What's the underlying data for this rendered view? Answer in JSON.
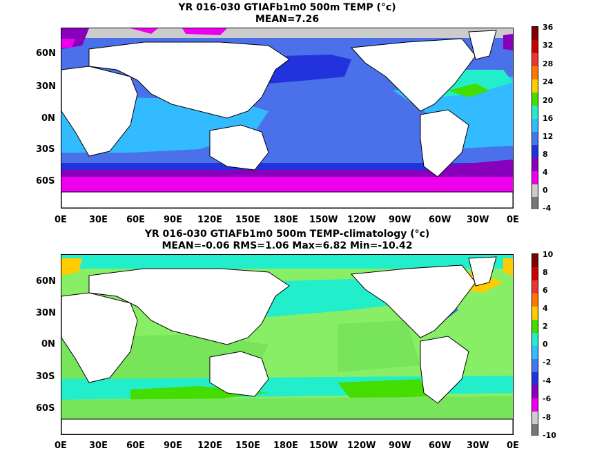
{
  "panels": [
    {
      "title_line1": "YR 016-030 GTIAFb1m0 500m TEMP (°c)",
      "title_line2": "MEAN=7.26",
      "lat_labels": [
        "60N",
        "30N",
        "0N",
        "30S",
        "60S"
      ],
      "lon_labels": [
        "0E",
        "30E",
        "60E",
        "90E",
        "120E",
        "150E",
        "180E",
        "150W",
        "120W",
        "90W",
        "60W",
        "30W",
        "0E"
      ],
      "colorbar_labels": [
        "36",
        "32",
        "28",
        "24",
        "20",
        "16",
        "12",
        "8",
        "4",
        "0",
        "-4"
      ],
      "colorbar_colors": [
        "#800000",
        "#cc0000",
        "#ee3333",
        "#ff7700",
        "#ffcc00",
        "#44dd00",
        "#22eecc",
        "#33bbff",
        "#4477ee",
        "#2233dd",
        "#8800bb",
        "#ee00ee",
        "#cccccc",
        "#777777"
      ]
    },
    {
      "title_line1": "YR 016-030 GTIAFb1m0 500m TEMP-climatology (°c)",
      "title_line2": "MEAN=-0.06   RMS=1.06   Max=6.82   Min=-10.42",
      "lat_labels": [
        "60N",
        "30N",
        "0N",
        "30S",
        "60S"
      ],
      "lon_labels": [
        "0E",
        "30E",
        "60E",
        "90E",
        "120E",
        "150E",
        "180E",
        "150W",
        "120W",
        "90W",
        "60W",
        "30W",
        "0E"
      ],
      "colorbar_labels": [
        "10",
        "8",
        "6",
        "4",
        "2",
        "0",
        "-2",
        "-4",
        "-6",
        "-8",
        "-10"
      ],
      "colorbar_colors": [
        "#800000",
        "#cc0000",
        "#ee3333",
        "#ff7700",
        "#ffcc00",
        "#44dd00",
        "#22eecc",
        "#33bbff",
        "#4477ee",
        "#2233dd",
        "#8800bb",
        "#ee00ee",
        "#cccccc",
        "#777777"
      ]
    }
  ]
}
